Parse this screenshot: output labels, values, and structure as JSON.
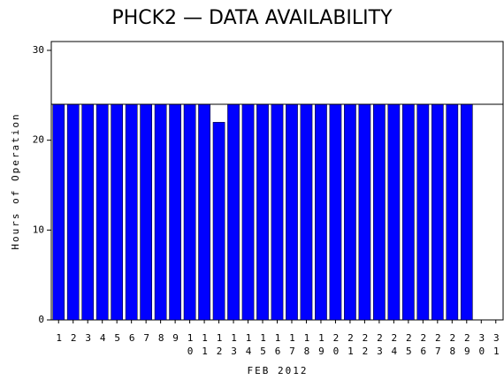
{
  "chart_data": {
    "type": "bar",
    "title": "PHCK2 — DATA AVAILABILITY",
    "x_label": "FEB 2012",
    "y_label": "Hours of Operation",
    "categories": [
      "1",
      "2",
      "3",
      "4",
      "5",
      "6",
      "7",
      "8",
      "9",
      "10",
      "11",
      "12",
      "13",
      "14",
      "15",
      "16",
      "17",
      "18",
      "19",
      "20",
      "21",
      "22",
      "23",
      "24",
      "25",
      "26",
      "27",
      "28",
      "29",
      "30",
      "31"
    ],
    "values": [
      24,
      24,
      24,
      24,
      24,
      24,
      24,
      24,
      24,
      24,
      24,
      22,
      24,
      24,
      24,
      24,
      24,
      24,
      24,
      24,
      24,
      24,
      24,
      24,
      24,
      24,
      24,
      24,
      24,
      null,
      null
    ],
    "color": "#0000ff",
    "reference_line": 24,
    "ylim": [
      0,
      30
    ],
    "yticks": [
      0,
      10,
      20,
      30
    ]
  }
}
